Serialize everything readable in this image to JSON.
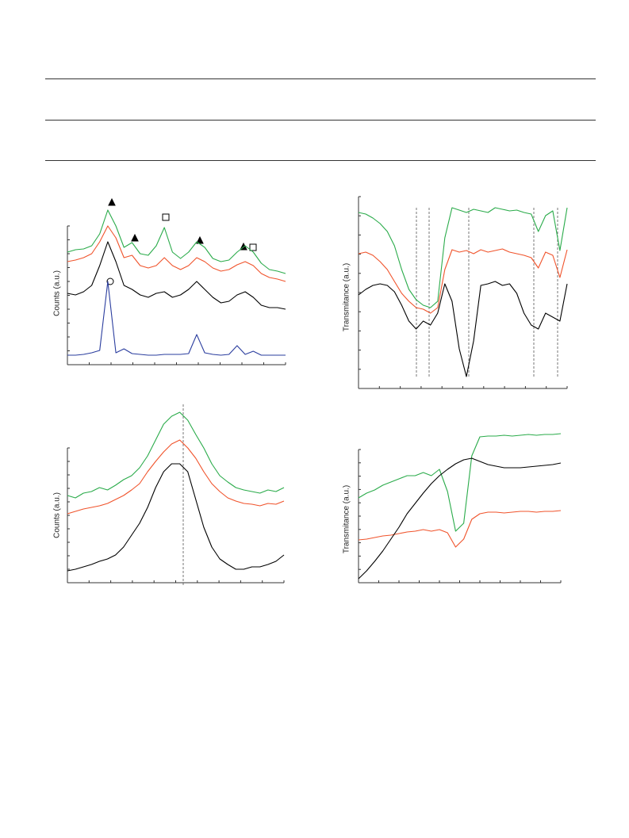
{
  "chart_data": [
    {
      "type": "line",
      "y_label": "Counts (a.u.)",
      "ylim": [
        0,
        210
      ],
      "series": [
        {
          "color": "#2aab4a",
          "values": [
            142,
            145,
            146,
            150,
            165,
            195,
            175,
            148,
            154,
            140,
            138,
            150,
            173,
            142,
            134,
            142,
            155,
            148,
            134,
            130,
            132,
            142,
            150,
            142,
            128,
            120,
            118,
            115
          ]
        },
        {
          "color": "#f0532b",
          "values": [
            130,
            132,
            135,
            140,
            155,
            175,
            160,
            135,
            138,
            125,
            122,
            125,
            135,
            125,
            120,
            125,
            135,
            130,
            122,
            118,
            120,
            126,
            130,
            125,
            115,
            110,
            108,
            105
          ]
        },
        {
          "color": "#000000",
          "values": [
            90,
            88,
            92,
            100,
            125,
            155,
            130,
            100,
            95,
            88,
            85,
            90,
            92,
            85,
            88,
            95,
            105,
            95,
            85,
            78,
            80,
            88,
            92,
            85,
            75,
            72,
            72,
            70
          ]
        },
        {
          "color": "#2a3d9e",
          "values": [
            12,
            12,
            13,
            15,
            18,
            105,
            15,
            20,
            14,
            13,
            12,
            12,
            13,
            13,
            13,
            14,
            38,
            15,
            13,
            12,
            13,
            24,
            13,
            17,
            12,
            12,
            12,
            12
          ]
        }
      ]
    },
    {
      "type": "line",
      "y_label": "Transmitance (a.u.)",
      "ylim": [
        0,
        242
      ],
      "series": [
        {
          "color": "#2aab4a",
          "values": [
            222,
            220,
            215,
            208,
            198,
            180,
            150,
            125,
            112,
            105,
            102,
            110,
            190,
            228,
            225,
            222,
            226,
            224,
            222,
            228,
            226,
            224,
            225,
            222,
            220,
            198,
            218,
            224,
            174,
            228
          ]
        },
        {
          "color": "#f0532b",
          "values": [
            170,
            172,
            168,
            160,
            150,
            135,
            120,
            110,
            102,
            100,
            95,
            102,
            150,
            175,
            172,
            174,
            170,
            175,
            172,
            174,
            176,
            172,
            170,
            168,
            165,
            152,
            172,
            168,
            140,
            175
          ]
        },
        {
          "color": "#000000",
          "values": [
            118,
            125,
            130,
            132,
            130,
            122,
            105,
            85,
            75,
            85,
            80,
            95,
            132,
            110,
            50,
            15,
            60,
            130,
            132,
            135,
            130,
            132,
            120,
            95,
            80,
            75,
            95,
            90,
            85,
            132
          ]
        }
      ]
    },
    {
      "type": "line",
      "y_label": "Counts (a.u.)",
      "ylim": [
        0,
        225
      ],
      "series": [
        {
          "color": "#2aab4a",
          "values": [
            110,
            107,
            113,
            115,
            120,
            117,
            123,
            130,
            135,
            145,
            160,
            180,
            200,
            210,
            215,
            205,
            187,
            170,
            150,
            135,
            127,
            120,
            117,
            115,
            113,
            117,
            115,
            120
          ]
        },
        {
          "color": "#f0532b",
          "values": [
            87,
            90,
            93,
            95,
            97,
            100,
            105,
            110,
            117,
            125,
            140,
            153,
            165,
            175,
            180,
            170,
            157,
            140,
            125,
            115,
            107,
            103,
            100,
            99,
            97,
            100,
            99,
            103
          ]
        },
        {
          "color": "#000000",
          "values": [
            15,
            17,
            20,
            23,
            27,
            30,
            35,
            45,
            60,
            75,
            95,
            120,
            140,
            150,
            150,
            140,
            105,
            70,
            45,
            30,
            23,
            17,
            17,
            20,
            20,
            23,
            27,
            35
          ]
        }
      ]
    },
    {
      "type": "line",
      "y_label": "Transmitance (a.u.)",
      "ylim": [
        0,
        190
      ],
      "series": [
        {
          "color": "#2aab4a",
          "values": [
            107,
            113,
            117,
            123,
            127,
            131,
            135,
            135,
            139,
            135,
            143,
            115,
            65,
            75,
            160,
            184,
            185,
            185,
            186,
            185,
            186,
            187,
            186,
            187,
            187,
            188
          ]
        },
        {
          "color": "#f0532b",
          "values": [
            54,
            55,
            57,
            59,
            60,
            62,
            64,
            65,
            67,
            65,
            67,
            63,
            45,
            55,
            80,
            87,
            89,
            89,
            88,
            89,
            90,
            90,
            89,
            90,
            90,
            91
          ]
        },
        {
          "color": "#000000",
          "values": [
            5,
            15,
            27,
            40,
            55,
            70,
            87,
            100,
            113,
            125,
            135,
            143,
            150,
            155,
            157,
            153,
            149,
            147,
            145,
            145,
            145,
            146,
            147,
            148,
            149,
            151
          ]
        }
      ]
    }
  ]
}
